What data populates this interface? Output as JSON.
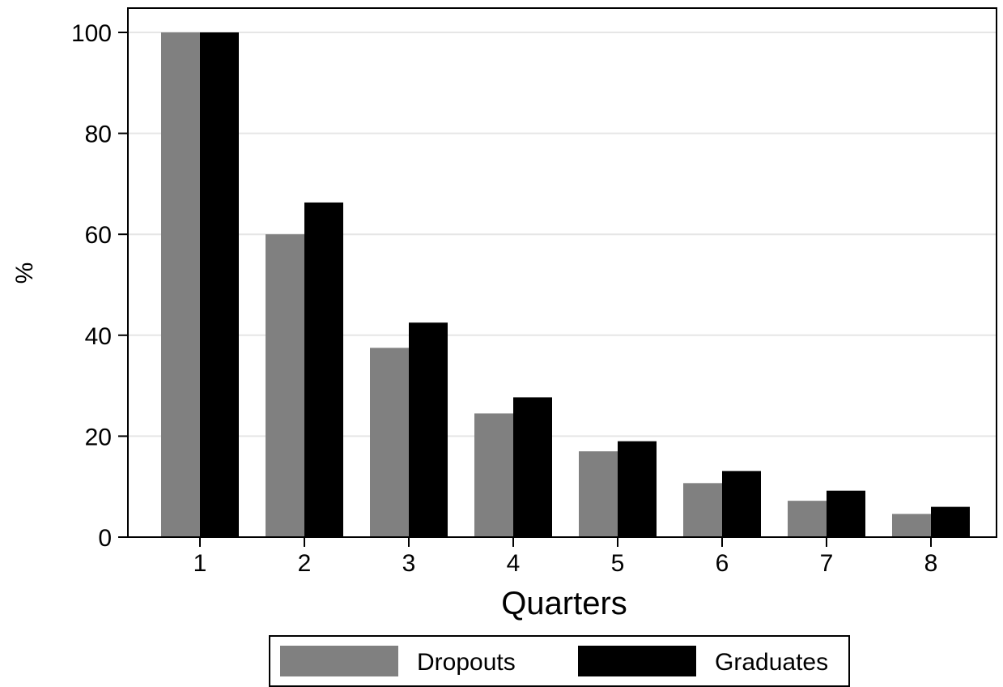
{
  "chart_data": {
    "type": "bar",
    "title": "",
    "xlabel": "Quarters",
    "ylabel": "%",
    "categories": [
      "1",
      "2",
      "3",
      "4",
      "5",
      "6",
      "7",
      "8"
    ],
    "ylim": [
      0,
      100
    ],
    "yticks": [
      "0",
      "20",
      "40",
      "60",
      "80",
      "100"
    ],
    "grid": true,
    "legend_position": "bottom",
    "series": [
      {
        "name": "Dropouts",
        "color": "#808080",
        "values": [
          100,
          60,
          37.5,
          24.5,
          17,
          10.7,
          7.2,
          4.6
        ]
      },
      {
        "name": "Graduates",
        "color": "#000000",
        "values": [
          100,
          66.3,
          42.5,
          27.7,
          19,
          13.1,
          9.2,
          6
        ]
      }
    ]
  }
}
